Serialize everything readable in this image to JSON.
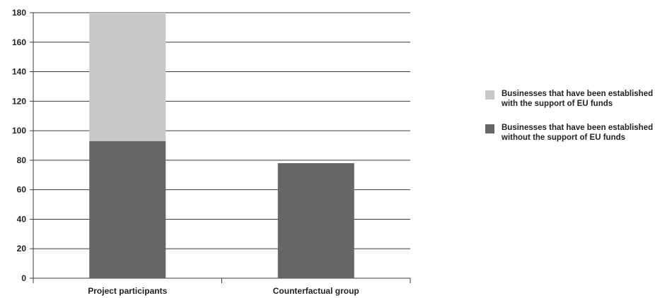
{
  "chart_data": {
    "type": "bar",
    "stacked": true,
    "categories": [
      "Project participants",
      "Counterfactual group"
    ],
    "series": [
      {
        "name": "Businesses that have been established without the support of EU funds",
        "values": [
          93,
          78
        ],
        "color": "#666666"
      },
      {
        "name": "Businesses that have been established with the support of EU funds",
        "values": [
          87,
          0
        ],
        "color": "#c8c8c8"
      }
    ],
    "ylim": [
      0,
      180
    ],
    "yticks": [
      0,
      20,
      40,
      60,
      80,
      100,
      120,
      140,
      160,
      180
    ],
    "grid": true,
    "legend": "right",
    "title": "",
    "xlabel": "",
    "ylabel": ""
  },
  "legend": {
    "items": [
      {
        "label": "Businesses that have been established with the support of EU funds",
        "color": "#c8c8c8"
      },
      {
        "label": "Businesses that have been established without the support of EU funds",
        "color": "#666666"
      }
    ]
  }
}
